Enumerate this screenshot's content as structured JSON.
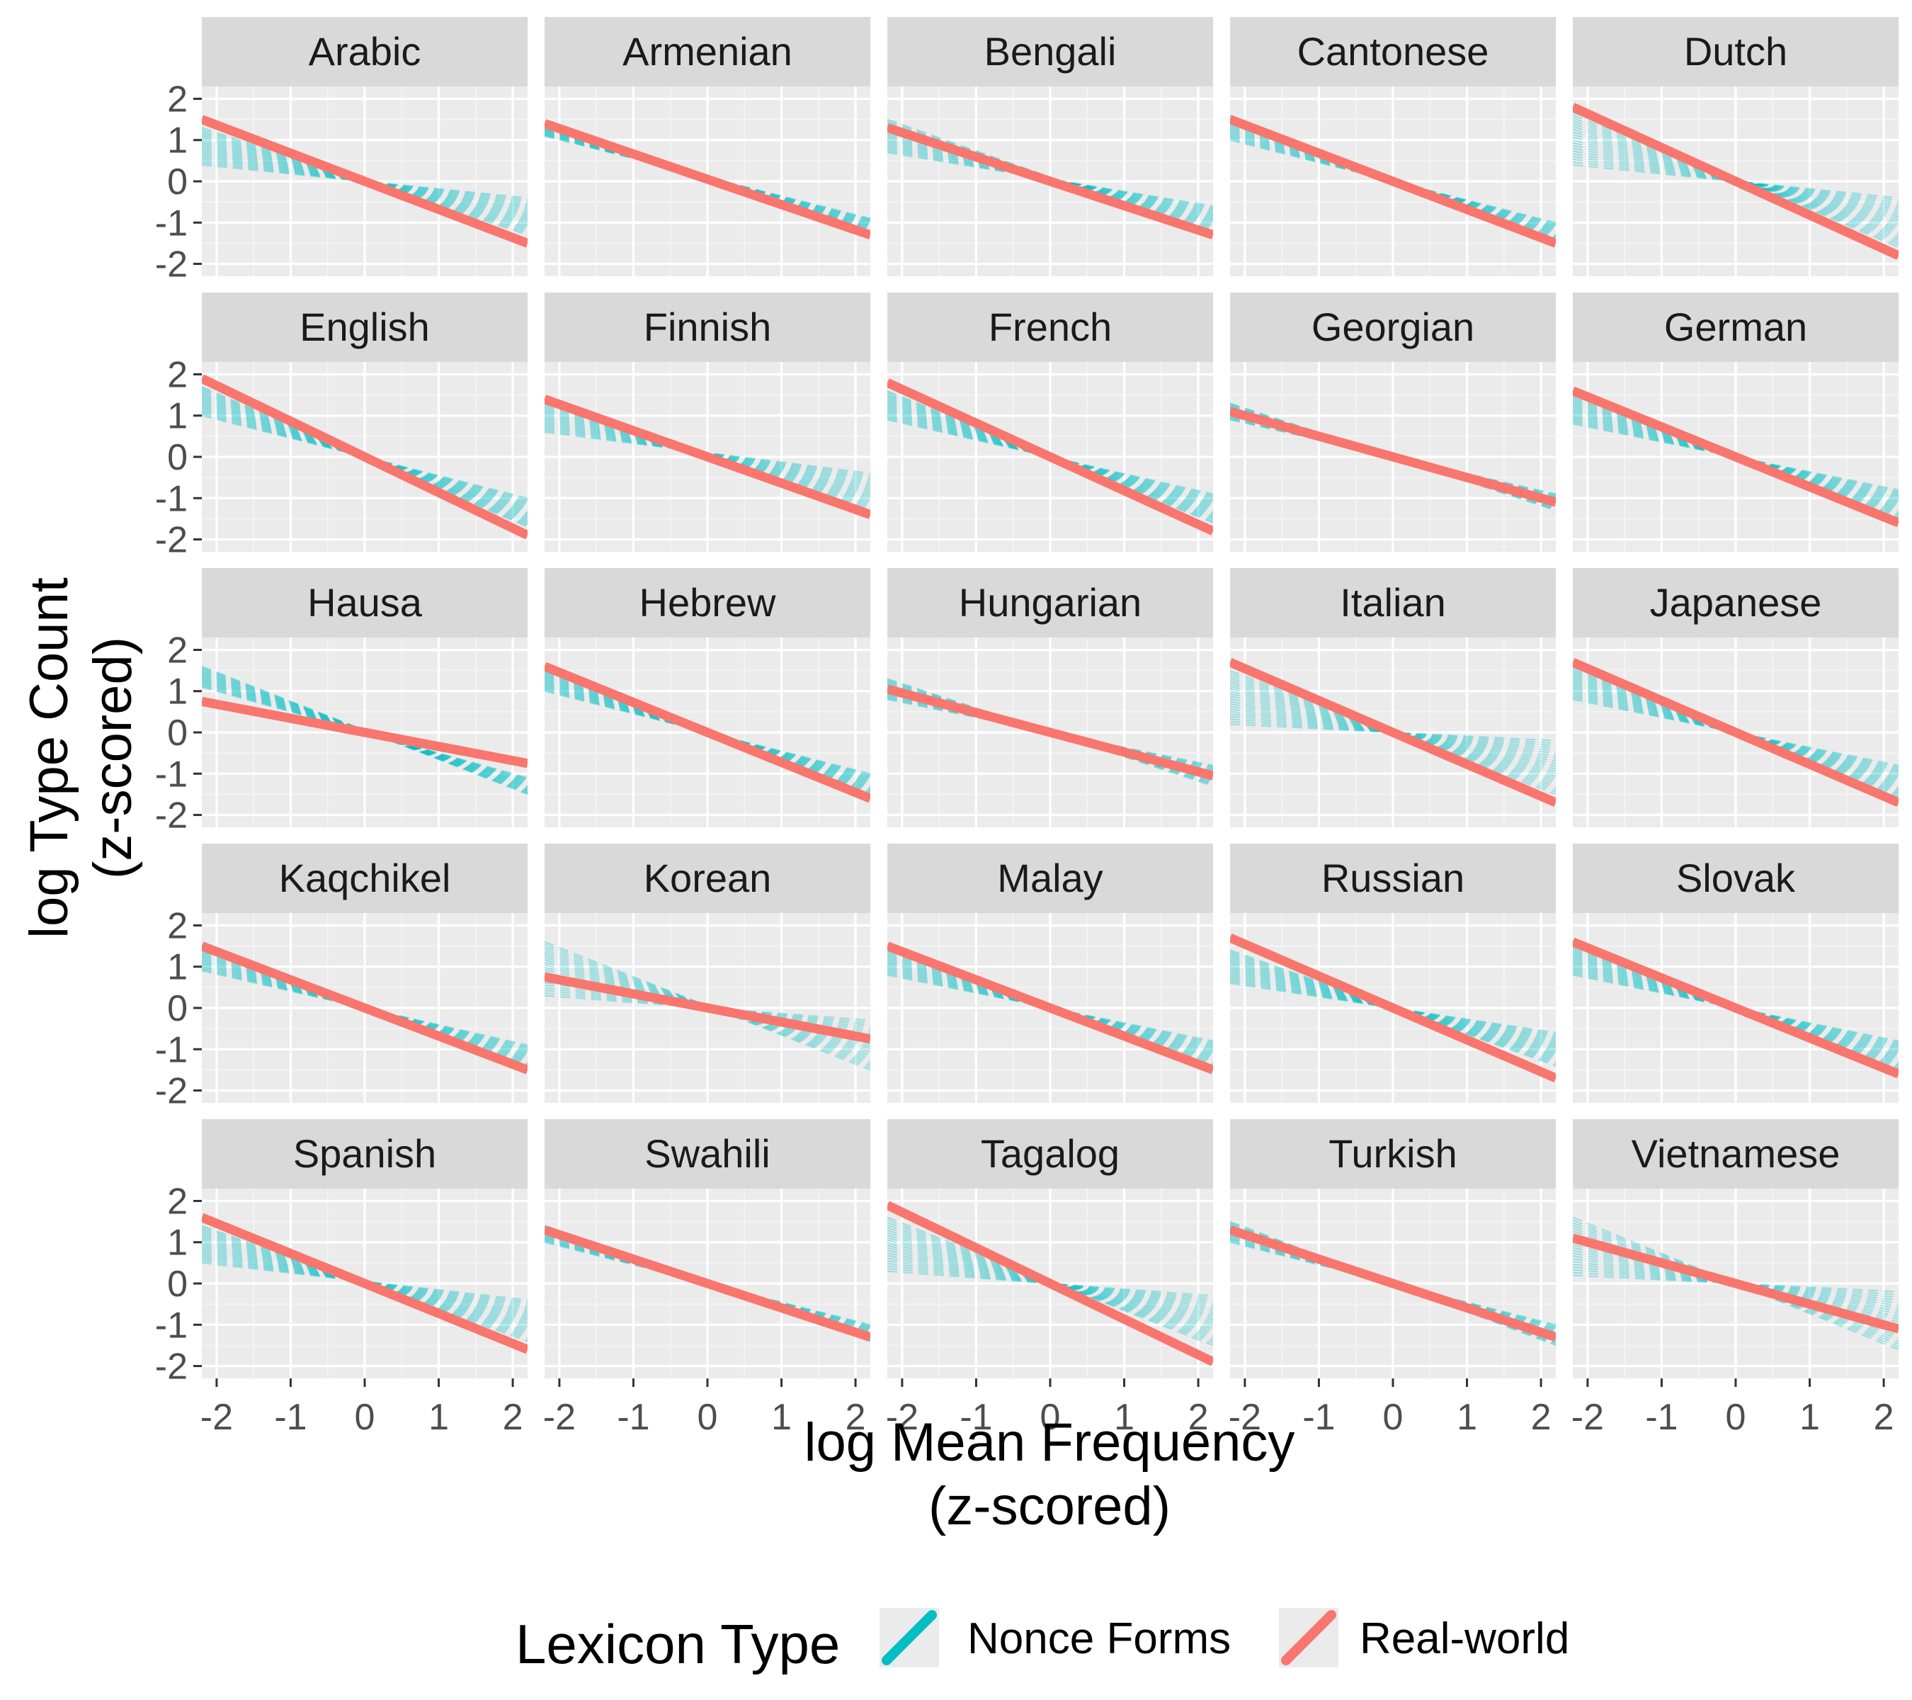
{
  "chart_data": {
    "type": "line",
    "facet": "language",
    "xlabel": [
      "log Mean Frequency",
      "(z-scored)"
    ],
    "ylabel": [
      "log Type Count",
      "(z-scored)"
    ],
    "xlim": [
      -2.2,
      2.2
    ],
    "ylim": [
      -2.3,
      2.3
    ],
    "x_ticks": [
      -2,
      -1,
      0,
      1,
      2
    ],
    "y_ticks": [
      -2,
      -1,
      0,
      1,
      2
    ],
    "grid": true,
    "legend": {
      "title": "Lexicon Type",
      "placement": "bottom",
      "entries": [
        {
          "label": "Nonce Forms",
          "color": "#00BFC4"
        },
        {
          "label": "Real-world",
          "color": "#F8766D"
        }
      ]
    },
    "series_colors": {
      "nonce": "#00BFC4",
      "real": "#F8766D"
    },
    "x_endpoints": [
      -2.2,
      2.2
    ],
    "panels": [
      {
        "name": "Arabic",
        "real": [
          1.5,
          -1.5
        ],
        "nonce_left": [
          0.4,
          1.3
        ],
        "nonce_right": [
          -1.3,
          -0.4
        ]
      },
      {
        "name": "Armenian",
        "real": [
          1.4,
          -1.3
        ],
        "nonce_left": [
          1.1,
          1.4
        ],
        "nonce_right": [
          -1.3,
          -0.9
        ]
      },
      {
        "name": "Bengali",
        "real": [
          1.3,
          -1.3
        ],
        "nonce_left": [
          0.7,
          1.5
        ],
        "nonce_right": [
          -1.3,
          -0.6
        ]
      },
      {
        "name": "Cantonese",
        "real": [
          1.5,
          -1.5
        ],
        "nonce_left": [
          1.0,
          1.6
        ],
        "nonce_right": [
          -1.5,
          -1.0
        ]
      },
      {
        "name": "Dutch",
        "real": [
          1.8,
          -1.8
        ],
        "nonce_left": [
          0.4,
          1.8
        ],
        "nonce_right": [
          -1.6,
          -0.4
        ]
      },
      {
        "name": "English",
        "real": [
          1.9,
          -1.9
        ],
        "nonce_left": [
          1.0,
          1.7
        ],
        "nonce_right": [
          -1.7,
          -1.0
        ]
      },
      {
        "name": "Finnish",
        "real": [
          1.4,
          -1.4
        ],
        "nonce_left": [
          0.6,
          1.4
        ],
        "nonce_right": [
          -1.4,
          -0.4
        ]
      },
      {
        "name": "French",
        "real": [
          1.8,
          -1.8
        ],
        "nonce_left": [
          0.9,
          1.6
        ],
        "nonce_right": [
          -1.6,
          -0.9
        ]
      },
      {
        "name": "Georgian",
        "real": [
          1.1,
          -1.1
        ],
        "nonce_left": [
          0.9,
          1.3
        ],
        "nonce_right": [
          -1.3,
          -0.9
        ]
      },
      {
        "name": "German",
        "real": [
          1.6,
          -1.6
        ],
        "nonce_left": [
          0.8,
          1.5
        ],
        "nonce_right": [
          -1.5,
          -0.8
        ]
      },
      {
        "name": "Hausa",
        "real": [
          0.75,
          -0.75
        ],
        "nonce_left": [
          1.1,
          1.6
        ],
        "nonce_right": [
          -1.5,
          -1.1
        ]
      },
      {
        "name": "Hebrew",
        "real": [
          1.6,
          -1.6
        ],
        "nonce_left": [
          1.0,
          1.5
        ],
        "nonce_right": [
          -1.5,
          -1.0
        ]
      },
      {
        "name": "Hungarian",
        "real": [
          1.05,
          -1.05
        ],
        "nonce_left": [
          0.8,
          1.3
        ],
        "nonce_right": [
          -1.3,
          -0.8
        ]
      },
      {
        "name": "Italian",
        "real": [
          1.7,
          -1.7
        ],
        "nonce_left": [
          0.2,
          1.5
        ],
        "nonce_right": [
          -1.5,
          -0.2
        ]
      },
      {
        "name": "Japanese",
        "real": [
          1.7,
          -1.7
        ],
        "nonce_left": [
          0.8,
          1.6
        ],
        "nonce_right": [
          -1.6,
          -0.8
        ]
      },
      {
        "name": "Kaqchikel",
        "real": [
          1.5,
          -1.5
        ],
        "nonce_left": [
          0.9,
          1.5
        ],
        "nonce_right": [
          -1.5,
          -0.9
        ]
      },
      {
        "name": "Korean",
        "real": [
          0.75,
          -0.75
        ],
        "nonce_left": [
          0.3,
          1.6
        ],
        "nonce_right": [
          -1.5,
          -0.3
        ]
      },
      {
        "name": "Malay",
        "real": [
          1.5,
          -1.5
        ],
        "nonce_left": [
          0.8,
          1.5
        ],
        "nonce_right": [
          -1.5,
          -0.8
        ]
      },
      {
        "name": "Russian",
        "real": [
          1.7,
          -1.7
        ],
        "nonce_left": [
          0.6,
          1.4
        ],
        "nonce_right": [
          -1.4,
          -0.6
        ]
      },
      {
        "name": "Slovak",
        "real": [
          1.6,
          -1.6
        ],
        "nonce_left": [
          0.8,
          1.5
        ],
        "nonce_right": [
          -1.5,
          -0.8
        ]
      },
      {
        "name": "Spanish",
        "real": [
          1.6,
          -1.6
        ],
        "nonce_left": [
          0.5,
          1.4
        ],
        "nonce_right": [
          -1.4,
          -0.4
        ]
      },
      {
        "name": "Swahili",
        "real": [
          1.3,
          -1.3
        ],
        "nonce_left": [
          1.0,
          1.4
        ],
        "nonce_right": [
          -1.4,
          -1.0
        ]
      },
      {
        "name": "Tagalog",
        "real": [
          1.9,
          -1.9
        ],
        "nonce_left": [
          0.3,
          1.6
        ],
        "nonce_right": [
          -1.5,
          -0.3
        ]
      },
      {
        "name": "Turkish",
        "real": [
          1.3,
          -1.3
        ],
        "nonce_left": [
          1.0,
          1.5
        ],
        "nonce_right": [
          -1.5,
          -1.0
        ]
      },
      {
        "name": "Vietnamese",
        "real": [
          1.1,
          -1.1
        ],
        "nonce_left": [
          0.2,
          1.6
        ],
        "nonce_right": [
          -1.6,
          -0.2
        ]
      }
    ]
  }
}
